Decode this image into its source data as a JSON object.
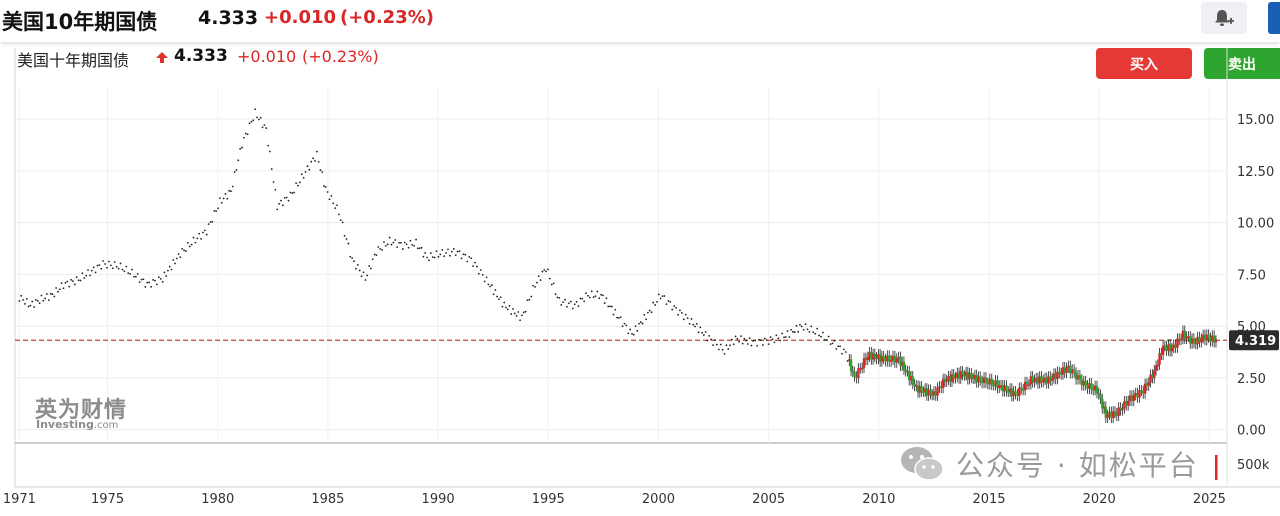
{
  "topbar": {
    "title": "美国10年期国债",
    "price": "4.333",
    "change": "+0.010",
    "change_pct": "(+0.23%)"
  },
  "chart_header": {
    "name": "美国十年期国债",
    "price": "4.333",
    "change": "+0.010",
    "change_pct": "(+0.23%)"
  },
  "buttons": {
    "buy": "买入",
    "sell": "卖出"
  },
  "watermarks": {
    "brand_cn": "英为财情",
    "brand_en": "Investing",
    "brand_en_suffix": ".com",
    "social": "公众号 · 如松平台"
  },
  "colors": {
    "up": "#d92626",
    "down": "#2ea52e",
    "ref_line": "#c43c3c",
    "label_bg": "#2b2b2b"
  },
  "chart_data": {
    "type": "line",
    "title": "",
    "xlabel": "",
    "ylabel": "",
    "xlim": [
      1970.8,
      2025.8
    ],
    "ylim": [
      -0.5,
      16.5
    ],
    "x_ticks": [
      1971,
      1975,
      1980,
      1985,
      1990,
      1995,
      2000,
      2005,
      2010,
      2015,
      2020,
      2025
    ],
    "y_ticks": [
      0.0,
      2.5,
      5.0,
      7.5,
      10.0,
      12.5,
      15.0
    ],
    "y_tick_labels": [
      "0.00",
      "2.50",
      "5.00",
      "7.50",
      "10.00",
      "12.50",
      "15.00"
    ],
    "volume_label": "500k",
    "current_value_label": "4.319",
    "current_value": 4.319,
    "grid": true,
    "series": [
      {
        "style": "dotted-to-2008-candles-after",
        "x": [
          1971,
          1971.5,
          1972,
          1972.5,
          1973,
          1973.6,
          1974.2,
          1974.8,
          1975.5,
          1976.2,
          1976.8,
          1977.5,
          1978.3,
          1978.9,
          1979.5,
          1980.1,
          1980.6,
          1981.1,
          1981.7,
          1982.2,
          1982.7,
          1983.3,
          1983.9,
          1984.5,
          1984.9,
          1985.5,
          1986.1,
          1986.7,
          1987.2,
          1987.8,
          1988.4,
          1989.0,
          1989.5,
          1990.1,
          1990.8,
          1991.5,
          1992.2,
          1993.0,
          1993.8,
          1994.4,
          1994.9,
          1995.5,
          1996.2,
          1996.8,
          1997.4,
          1998.2,
          1998.8,
          1999.6,
          2000.1,
          2000.8,
          2001.5,
          2002.3,
          2003.0,
          2003.5,
          2004.3,
          2005.0,
          2005.7,
          2006.5,
          2007.2,
          2007.9,
          2008.5,
          2008.9,
          2009.5,
          2010.3,
          2010.9,
          2011.7,
          2012.5,
          2013.0,
          2013.8,
          2014.6,
          2015.3,
          2016.2,
          2016.9,
          2017.7,
          2018.6,
          2019.3,
          2019.9,
          2020.3,
          2020.8,
          2021.4,
          2022.0,
          2022.5,
          2022.9,
          2023.3,
          2023.8,
          2024.3,
          2024.8,
          2025.3
        ],
        "values": [
          6.4,
          6.0,
          6.3,
          6.5,
          7.0,
          7.2,
          7.6,
          8.0,
          7.9,
          7.5,
          7.0,
          7.3,
          8.5,
          9.1,
          9.6,
          11.0,
          11.5,
          13.8,
          15.3,
          14.5,
          10.8,
          11.3,
          12.3,
          13.3,
          11.6,
          10.5,
          8.2,
          7.3,
          8.6,
          9.1,
          8.9,
          9.0,
          8.3,
          8.5,
          8.6,
          8.2,
          7.2,
          6.0,
          5.4,
          7.0,
          7.8,
          6.2,
          6.0,
          6.5,
          6.5,
          5.4,
          4.6,
          5.7,
          6.5,
          5.8,
          5.2,
          4.4,
          3.8,
          4.4,
          4.2,
          4.3,
          4.5,
          5.0,
          4.7,
          4.2,
          3.7,
          2.5,
          3.6,
          3.4,
          3.4,
          2.0,
          1.7,
          2.4,
          2.7,
          2.4,
          2.2,
          1.7,
          2.4,
          2.4,
          3.0,
          2.2,
          1.9,
          0.7,
          0.8,
          1.5,
          1.9,
          2.8,
          4.0,
          3.9,
          4.6,
          4.2,
          4.5,
          4.3
        ]
      }
    ]
  }
}
